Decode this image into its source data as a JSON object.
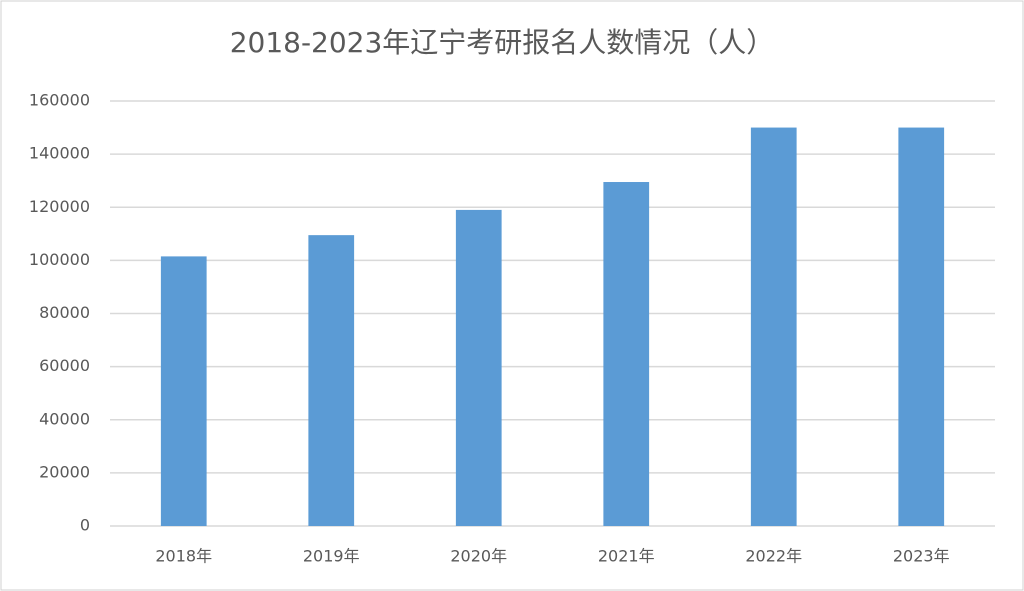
{
  "chart_data": {
    "type": "bar",
    "title": "2018-2023年辽宁考研报名人数情况（人）",
    "categories": [
      "2018年",
      "2019年",
      "2020年",
      "2021年",
      "2022年",
      "2023年"
    ],
    "values": [
      101500,
      109500,
      119000,
      129500,
      150000,
      150000
    ],
    "color": "#5b9bd5",
    "ylim": [
      0,
      160000
    ],
    "yticks": [
      0,
      20000,
      40000,
      60000,
      80000,
      100000,
      120000,
      140000,
      160000
    ],
    "grid": true
  }
}
